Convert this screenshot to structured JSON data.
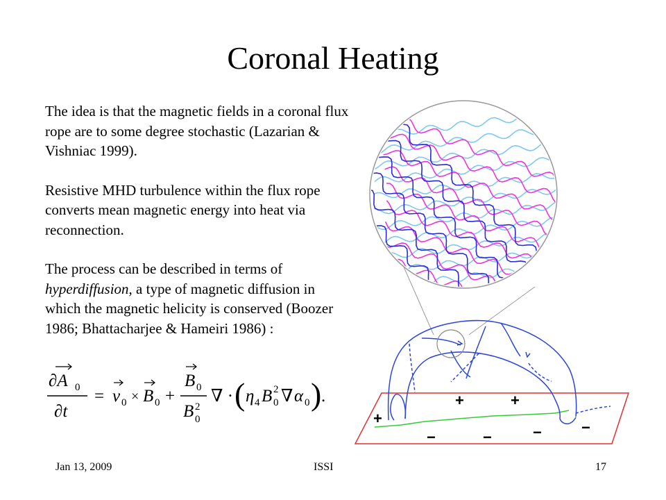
{
  "slide": {
    "title": "Coronal Heating",
    "paragraphs": [
      {
        "text": "The idea is that the magnetic fields in a coronal flux rope are to some degree stochastic (Lazarian & Vishniac 1999)."
      },
      {
        "text": "Resistive MHD turbulence within the flux rope converts mean magnetic energy into heat via reconnection."
      },
      {
        "before": "The process can be described in terms of ",
        "emphasis": "hyperdiffusion",
        "after": ", a type of magnetic diffusion in which the magnetic helicity is conserved (Boozer 1986; Bhattacharjee & Hameiri 1986) :"
      }
    ]
  },
  "equation": {
    "lhs_num": "∂A",
    "lhs_sub": "0",
    "lhs_den": "∂t",
    "eq": "=",
    "v": "v",
    "v_sub": "0",
    "times": "×",
    "b": "B",
    "b_sub": "0",
    "plus": "+",
    "frac_num": "B",
    "frac_num_sub": "0",
    "frac_den": "B",
    "frac_den_sub": "0",
    "frac_den_sup": "2",
    "nabla_dot": "∇ ·",
    "open_paren": "(",
    "eta": "η",
    "eta_sub": "4",
    "b2": "B",
    "b2_sub": "0",
    "b2_sup": "2",
    "nabla": "∇",
    "alpha": "α",
    "alpha_sub": "0",
    "close_paren": ")",
    "period": "."
  },
  "figure": {
    "plus_signs": [
      "+",
      "+",
      "+"
    ],
    "minus_signs": [
      "−",
      "−",
      "−",
      "−"
    ],
    "colors": {
      "dark_blue": "#2a2ad8",
      "light_blue": "#7ec8ee",
      "magenta": "#ee33dd",
      "plane": "#e03030",
      "neutral_line": "#33cc33",
      "loop": "#2b45d8"
    }
  },
  "footer": {
    "date": "Jan 13, 2009",
    "venue": "ISSI",
    "page": "17"
  }
}
